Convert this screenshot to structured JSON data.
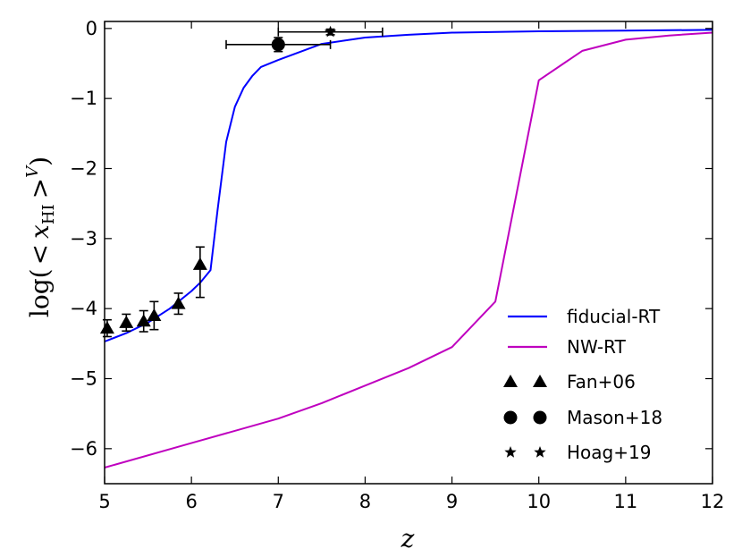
{
  "chart_data": {
    "type": "line",
    "xlabel": "z",
    "ylabel": "log(< x_HI >^V)",
    "ylabel_parts": {
      "log": "log(",
      "lt": "<",
      "x": "x",
      "sub": "HI",
      "gt": ">",
      "sup": "V",
      "close": ")"
    },
    "xlim": [
      5,
      12
    ],
    "ylim": [
      -6.5,
      0.1
    ],
    "xticks": [
      5,
      6,
      7,
      8,
      9,
      10,
      11,
      12
    ],
    "yticks": [
      0,
      -1,
      -2,
      -3,
      -4,
      -5,
      -6
    ],
    "xtick_labels": [
      "5",
      "6",
      "7",
      "8",
      "9",
      "10",
      "11",
      "12"
    ],
    "ytick_labels": [
      "0",
      "−1",
      "−2",
      "−3",
      "−4",
      "−5",
      "−6"
    ],
    "grid": false,
    "legend_position": "lower-right",
    "series": [
      {
        "name": "fiducial-RT",
        "color": "#0000ff",
        "x": [
          5.0,
          5.25,
          5.5,
          5.75,
          6.0,
          6.1,
          6.22,
          6.3,
          6.4,
          6.5,
          6.6,
          6.7,
          6.8,
          7.0,
          7.5,
          8.0,
          8.5,
          9.0,
          10.0,
          11.0,
          12.0
        ],
        "y": [
          -4.47,
          -4.35,
          -4.2,
          -4.0,
          -3.75,
          -3.63,
          -3.45,
          -2.6,
          -1.62,
          -1.12,
          -0.85,
          -0.68,
          -0.55,
          -0.45,
          -0.22,
          -0.13,
          -0.09,
          -0.06,
          -0.04,
          -0.03,
          -0.02
        ]
      },
      {
        "name": "NW-RT",
        "color": "#bf00bf",
        "x": [
          5.0,
          6.0,
          7.0,
          7.5,
          8.0,
          8.5,
          9.0,
          9.5,
          10.0,
          10.5,
          11.0,
          11.5,
          12.0
        ],
        "y": [
          -6.27,
          -5.92,
          -5.57,
          -5.35,
          -5.1,
          -4.85,
          -4.55,
          -3.9,
          -0.74,
          -0.32,
          -0.16,
          -0.1,
          -0.06
        ]
      }
    ],
    "observations": [
      {
        "name": "Fan+06",
        "marker": "triangle",
        "points": [
          {
            "x": 5.03,
            "y": -4.28,
            "yerr": 0.12
          },
          {
            "x": 5.25,
            "y": -4.2,
            "yerr": 0.12
          },
          {
            "x": 5.45,
            "y": -4.18,
            "yerr": 0.15
          },
          {
            "x": 5.57,
            "y": -4.1,
            "yerr": 0.2
          },
          {
            "x": 5.85,
            "y": -3.93,
            "yerr": 0.15
          },
          {
            "x": 6.1,
            "y": -3.37,
            "yerr_low": 0.47,
            "yerr_high": 0.25
          }
        ]
      },
      {
        "name": "Mason+18",
        "marker": "circle",
        "points": [
          {
            "x": 7.0,
            "y": -0.23,
            "xerr": 0.6,
            "yerr": 0.1
          }
        ]
      },
      {
        "name": "Hoag+19",
        "marker": "star",
        "points": [
          {
            "x": 7.6,
            "y": -0.05,
            "xerr": 0.6,
            "yerr": 0.04
          }
        ]
      }
    ],
    "legend": [
      {
        "label": "fiducial-RT",
        "kind": "line",
        "color": "#0000ff"
      },
      {
        "label": "NW-RT",
        "kind": "line",
        "color": "#bf00bf"
      },
      {
        "label": "Fan+06",
        "kind": "marker",
        "marker": "triangle"
      },
      {
        "label": "Mason+18",
        "kind": "marker",
        "marker": "circle"
      },
      {
        "label": "Hoag+19",
        "kind": "marker",
        "marker": "star"
      }
    ]
  }
}
